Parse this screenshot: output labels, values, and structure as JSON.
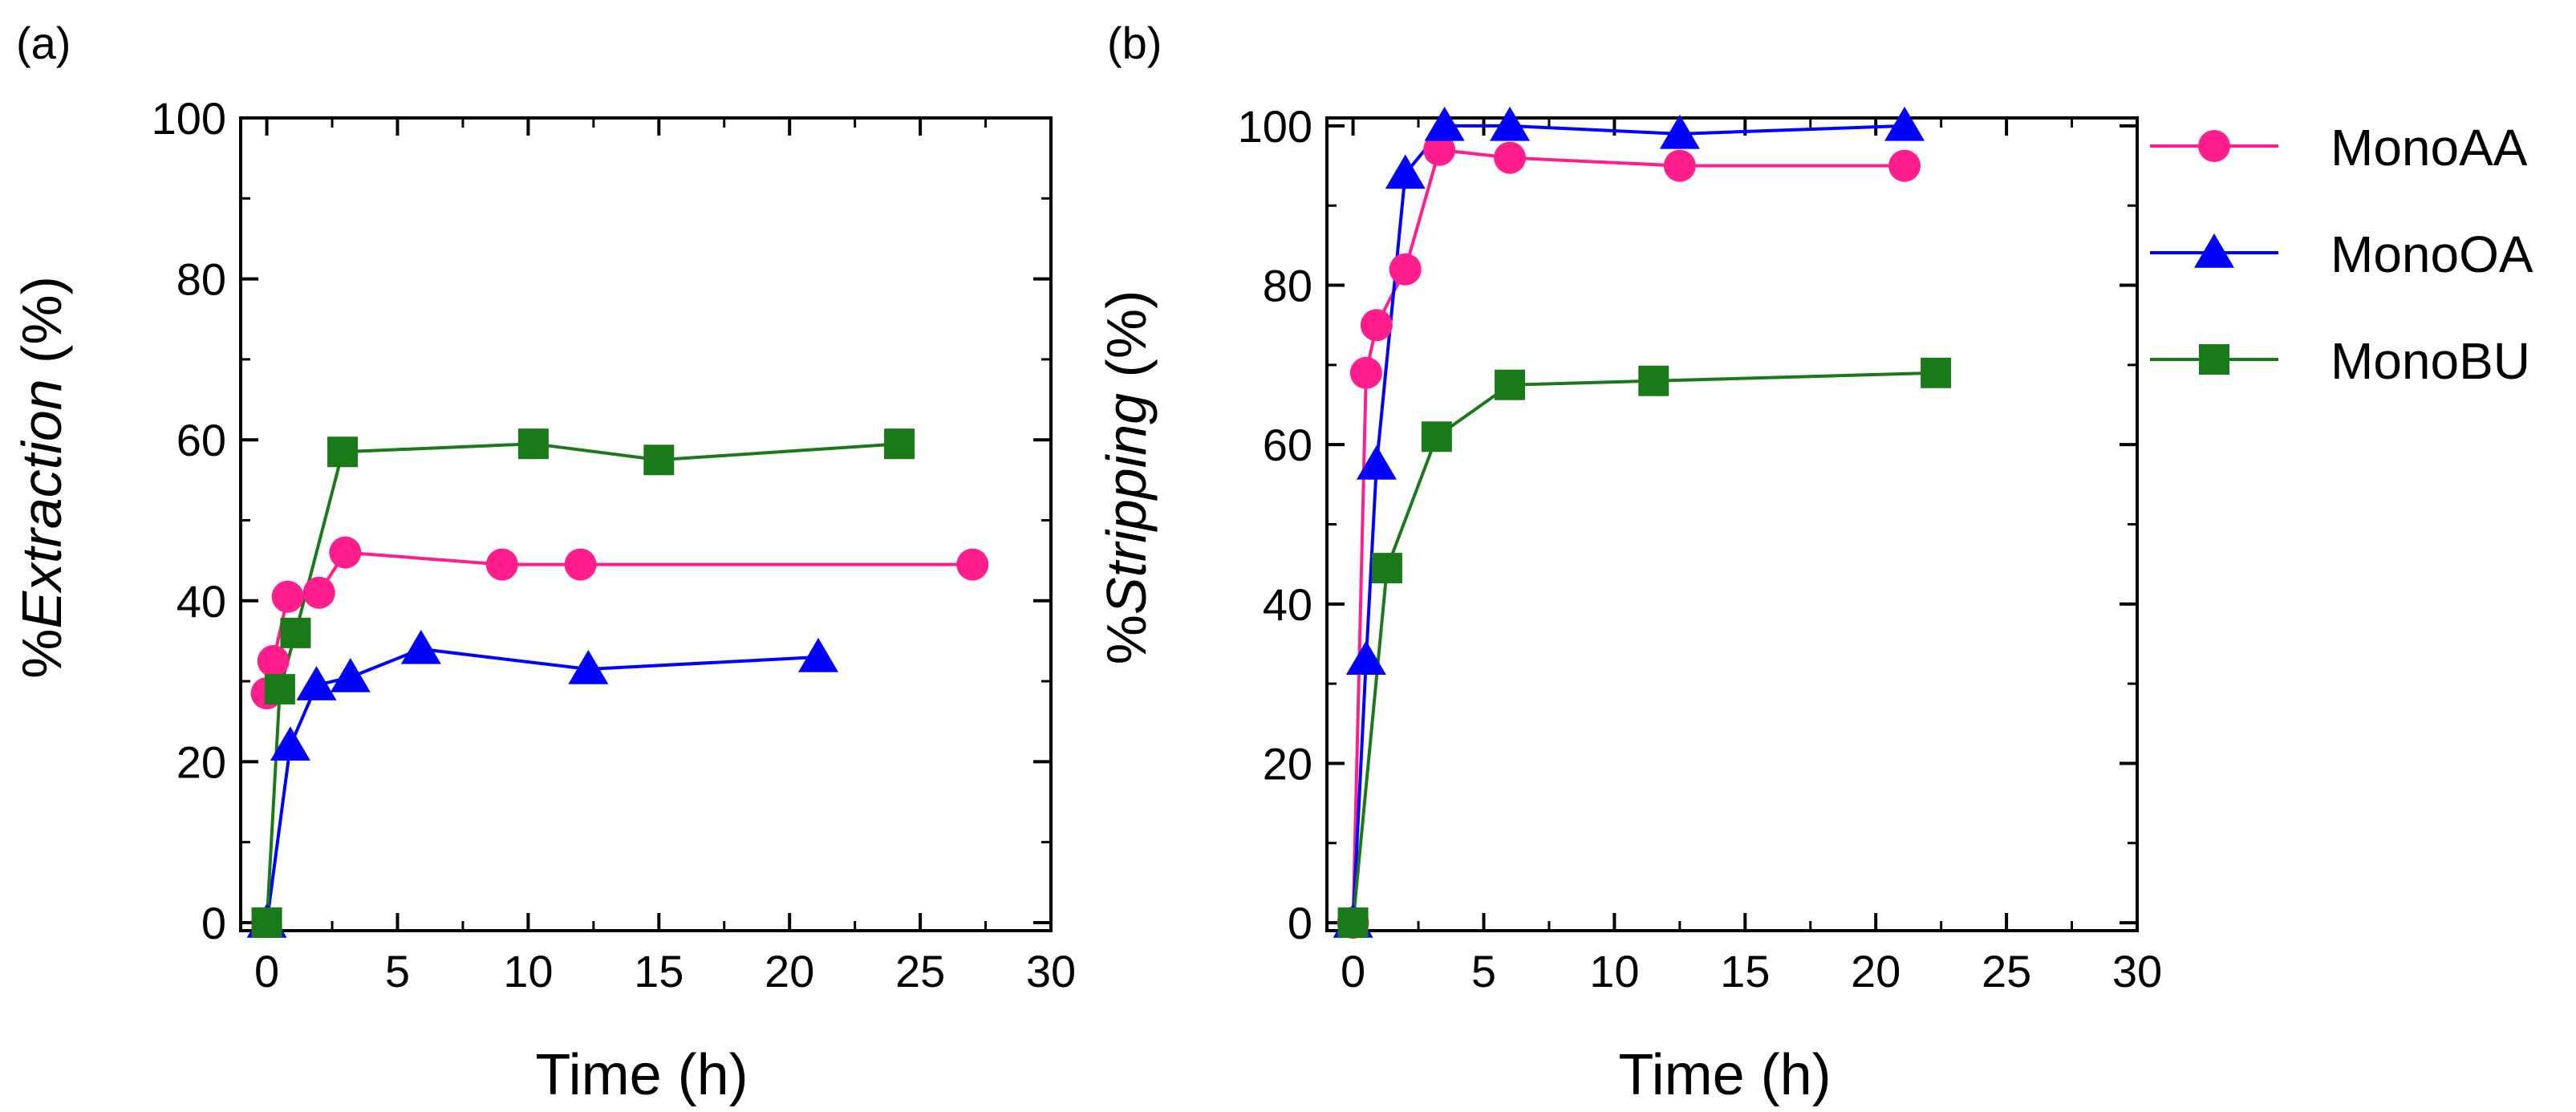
{
  "colors": {
    "MonoAA": "#ff1e8c",
    "MonoOA": "#0000ff",
    "MonoBU": "#1a7a1a",
    "axis": "#000000",
    "background": "#ffffff"
  },
  "legend": {
    "placement": "right of panel (b)",
    "items": [
      {
        "label": "MonoAA",
        "marker": "circle",
        "series": "MonoAA"
      },
      {
        "label": "MonoOA",
        "marker": "triangle",
        "series": "MonoOA"
      },
      {
        "label": "MonoBU",
        "marker": "square",
        "series": "MonoBU"
      }
    ]
  },
  "chart_data": [
    {
      "type": "line",
      "panel_label": "(a)",
      "title": "",
      "xlabel": "Time (h)",
      "ylabel_prefix": "%",
      "ylabel_italic": "Extraction",
      "ylabel_suffix": " (%)",
      "xlim": [
        -1,
        30
      ],
      "ylim": [
        -1,
        100
      ],
      "xticks": [
        0,
        5,
        10,
        15,
        20,
        25,
        30
      ],
      "yticks": [
        0,
        20,
        40,
        60,
        80,
        100
      ],
      "xminor": [
        2.5,
        7.5,
        12.5,
        17.5,
        22.5,
        27.5
      ],
      "yminor": [
        10,
        30,
        50,
        70,
        90
      ],
      "grid": false,
      "series": [
        {
          "name": "MonoAA",
          "marker": "circle",
          "x": [
            0,
            0.25,
            0.8,
            2,
            3,
            9,
            12,
            27
          ],
          "y": [
            28.5,
            32.5,
            40.5,
            41,
            46,
            44.5,
            44.5,
            44.5
          ]
        },
        {
          "name": "MonoOA",
          "marker": "triangle",
          "x": [
            0,
            0.9,
            1.9,
            3.2,
            5.9,
            12.3,
            21.1
          ],
          "y": [
            0,
            22,
            29.5,
            30.5,
            34,
            31.5,
            33
          ]
        },
        {
          "name": "MonoBU",
          "marker": "square",
          "x": [
            0,
            0.5,
            1.1,
            2.9,
            10.2,
            15,
            24.2
          ],
          "y": [
            0,
            29,
            36,
            58.5,
            59.5,
            57.5,
            59.5
          ]
        }
      ]
    },
    {
      "type": "line",
      "panel_label": "(b)",
      "title": "",
      "xlabel": "Time (h)",
      "ylabel_prefix": "%",
      "ylabel_italic": "Stripping",
      "ylabel_suffix": " (%)",
      "xlim": [
        -1,
        30
      ],
      "ylim": [
        -1,
        101
      ],
      "xticks": [
        0,
        5,
        10,
        15,
        20,
        25,
        30
      ],
      "yticks": [
        0,
        20,
        40,
        60,
        80,
        100
      ],
      "xminor": [
        2.5,
        7.5,
        12.5,
        17.5,
        22.5,
        27.5
      ],
      "yminor": [
        10,
        30,
        50,
        70,
        90
      ],
      "grid": false,
      "series": [
        {
          "name": "MonoAA",
          "marker": "circle",
          "x": [
            0,
            0.5,
            0.9,
            2,
            3.3,
            6,
            12.5,
            21.1
          ],
          "y": [
            0,
            69,
            75,
            82,
            97,
            96,
            95,
            95
          ]
        },
        {
          "name": "MonoOA",
          "marker": "triangle",
          "x": [
            0,
            0.5,
            0.9,
            2,
            3.5,
            6,
            12.5,
            21.1
          ],
          "y": [
            0,
            33,
            57.5,
            94,
            100,
            100,
            99,
            100
          ]
        },
        {
          "name": "MonoBU",
          "marker": "square",
          "x": [
            0,
            1.3,
            3.2,
            6,
            11.5,
            22.3
          ],
          "y": [
            0,
            44.5,
            61,
            67.5,
            68,
            69
          ]
        }
      ]
    }
  ]
}
